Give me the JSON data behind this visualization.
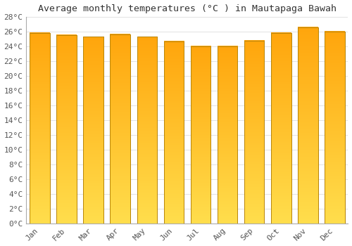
{
  "title": "Average monthly temperatures (°C ) in Mautapaga Bawah",
  "months": [
    "Jan",
    "Feb",
    "Mar",
    "Apr",
    "May",
    "Jun",
    "Jul",
    "Aug",
    "Sep",
    "Oct",
    "Nov",
    "Dec"
  ],
  "temperatures": [
    25.8,
    25.5,
    25.3,
    25.6,
    25.3,
    24.7,
    24.0,
    24.0,
    24.8,
    25.8,
    26.6,
    26.0
  ],
  "bar_color_mid": "#FFA726",
  "bar_color_top": "#FFB300",
  "bar_color_bottom": "#FFD54F",
  "bar_edge_color": "#B8860B",
  "ylim": [
    0,
    28
  ],
  "yticks": [
    0,
    2,
    4,
    6,
    8,
    10,
    12,
    14,
    16,
    18,
    20,
    22,
    24,
    26,
    28
  ],
  "ytick_labels": [
    "0°C",
    "2°C",
    "4°C",
    "6°C",
    "8°C",
    "10°C",
    "12°C",
    "14°C",
    "16°C",
    "18°C",
    "20°C",
    "22°C",
    "24°C",
    "26°C",
    "28°C"
  ],
  "background_color": "#FFFFFF",
  "grid_color": "#DDDDDD",
  "title_fontsize": 9.5,
  "tick_fontsize": 8,
  "bar_width": 0.75
}
